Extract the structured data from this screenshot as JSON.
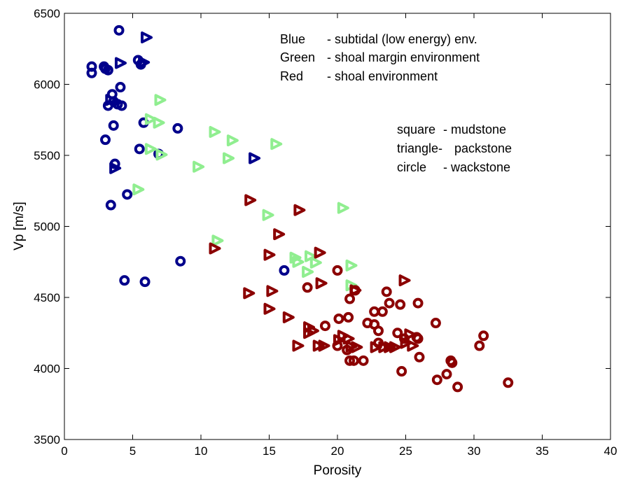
{
  "chart_data": {
    "type": "scatter",
    "title": "",
    "xlabel": "Porosity",
    "ylabel": "Vp [m/s]",
    "xlim": [
      0,
      40
    ],
    "ylim": [
      3500,
      6500
    ],
    "xticks": [
      "0",
      "5",
      "10",
      "15",
      "20",
      "25",
      "30",
      "35",
      "40"
    ],
    "yticks": [
      "3500",
      "4000",
      "4500",
      "5000",
      "5500",
      "6000",
      "6500"
    ],
    "grid": false,
    "annotations": {
      "environment": [
        {
          "key": "Blue",
          "text": "- subtidal (low energy) env."
        },
        {
          "key": "Green",
          "text": "- shoal margin environment"
        },
        {
          "key": "Red",
          "text": "- shoal environment"
        }
      ],
      "lithology": [
        {
          "key": "square",
          "text": "- mudstone"
        },
        {
          "key": "triangle-",
          "text": "packstone"
        },
        {
          "key": "circle",
          "text": "- wackstone"
        }
      ]
    },
    "colors": {
      "blue": "#00008b",
      "green": "#90ee90",
      "red": "#8b0000"
    },
    "series": [
      {
        "group": "blue-circle",
        "color": "#00008b",
        "marker": "circle",
        "points": [
          [
            4.0,
            6380
          ],
          [
            2.0,
            6125
          ],
          [
            2.0,
            6080
          ],
          [
            2.9,
            6125
          ],
          [
            3.0,
            6110
          ],
          [
            3.2,
            6100
          ],
          [
            5.4,
            6170
          ],
          [
            5.6,
            6140
          ],
          [
            3.2,
            5850
          ],
          [
            3.5,
            5930
          ],
          [
            3.6,
            5880
          ],
          [
            4.1,
            5980
          ],
          [
            3.9,
            5860
          ],
          [
            4.2,
            5850
          ],
          [
            5.8,
            5730
          ],
          [
            3.6,
            5710
          ],
          [
            8.3,
            5690
          ],
          [
            3.0,
            5610
          ],
          [
            5.5,
            5545
          ],
          [
            6.9,
            5510
          ],
          [
            3.7,
            5440
          ],
          [
            4.6,
            5225
          ],
          [
            3.4,
            5150
          ],
          [
            8.5,
            4755
          ],
          [
            4.4,
            4620
          ],
          [
            5.9,
            4610
          ],
          [
            16.1,
            4690
          ]
        ]
      },
      {
        "group": "blue-triangle",
        "color": "#00008b",
        "marker": "triangle",
        "points": [
          [
            6.0,
            6330
          ],
          [
            4.1,
            6150
          ],
          [
            5.8,
            6155
          ],
          [
            3.4,
            5890
          ],
          [
            3.7,
            5410
          ],
          [
            13.9,
            5480
          ]
        ]
      },
      {
        "group": "green-triangle",
        "color": "#90ee90",
        "marker": "triangle",
        "points": [
          [
            7.0,
            5890
          ],
          [
            6.3,
            5755
          ],
          [
            6.9,
            5730
          ],
          [
            6.3,
            5545
          ],
          [
            7.1,
            5505
          ],
          [
            11.0,
            5665
          ],
          [
            12.3,
            5605
          ],
          [
            12.0,
            5480
          ],
          [
            9.8,
            5420
          ],
          [
            15.5,
            5580
          ],
          [
            5.4,
            5260
          ],
          [
            14.9,
            5080
          ],
          [
            20.4,
            5130
          ],
          [
            11.2,
            4900
          ],
          [
            16.9,
            4780
          ],
          [
            17.1,
            4750
          ],
          [
            18.0,
            4790
          ],
          [
            18.4,
            4745
          ],
          [
            21.0,
            4725
          ],
          [
            17.8,
            4680
          ],
          [
            21.0,
            4585
          ]
        ]
      },
      {
        "group": "red-triangle",
        "color": "#8b0000",
        "marker": "triangle",
        "points": [
          [
            13.6,
            5185
          ],
          [
            17.2,
            5115
          ],
          [
            15.7,
            4945
          ],
          [
            11.0,
            4845
          ],
          [
            15.0,
            4800
          ],
          [
            18.7,
            4815
          ],
          [
            18.8,
            4600
          ],
          [
            15.2,
            4545
          ],
          [
            13.5,
            4530
          ],
          [
            24.9,
            4620
          ],
          [
            15.0,
            4420
          ],
          [
            16.4,
            4360
          ],
          [
            21.3,
            4550
          ],
          [
            17.9,
            4290
          ],
          [
            17.9,
            4250
          ],
          [
            18.2,
            4265
          ],
          [
            17.1,
            4160
          ],
          [
            18.6,
            4160
          ],
          [
            19.0,
            4160
          ],
          [
            20.1,
            4200
          ],
          [
            20.4,
            4230
          ],
          [
            20.8,
            4210
          ],
          [
            21.0,
            4155
          ],
          [
            21.4,
            4150
          ],
          [
            22.8,
            4150
          ],
          [
            23.4,
            4150
          ],
          [
            23.8,
            4150
          ],
          [
            24.2,
            4150
          ],
          [
            25.3,
            4240
          ],
          [
            25.5,
            4160
          ],
          [
            25.0,
            4180
          ]
        ]
      },
      {
        "group": "red-circle",
        "color": "#8b0000",
        "marker": "circle",
        "points": [
          [
            20.0,
            4690
          ],
          [
            17.8,
            4570
          ],
          [
            20.9,
            4490
          ],
          [
            21.3,
            4550
          ],
          [
            23.6,
            4540
          ],
          [
            22.7,
            4400
          ],
          [
            23.3,
            4400
          ],
          [
            23.8,
            4460
          ],
          [
            24.6,
            4450
          ],
          [
            25.9,
            4460
          ],
          [
            20.1,
            4350
          ],
          [
            20.8,
            4360
          ],
          [
            22.2,
            4320
          ],
          [
            22.7,
            4310
          ],
          [
            23.0,
            4265
          ],
          [
            24.4,
            4250
          ],
          [
            24.9,
            4210
          ],
          [
            25.8,
            4220
          ],
          [
            25.9,
            4210
          ],
          [
            27.2,
            4320
          ],
          [
            19.1,
            4300
          ],
          [
            20.0,
            4160
          ],
          [
            20.7,
            4130
          ],
          [
            20.9,
            4055
          ],
          [
            21.2,
            4055
          ],
          [
            21.9,
            4055
          ],
          [
            23.0,
            4180
          ],
          [
            24.7,
            3980
          ],
          [
            26.0,
            4080
          ],
          [
            27.3,
            3920
          ],
          [
            28.0,
            3960
          ],
          [
            28.3,
            4055
          ],
          [
            28.4,
            4040
          ],
          [
            28.8,
            3870
          ],
          [
            30.4,
            4160
          ],
          [
            30.7,
            4230
          ],
          [
            32.5,
            3900
          ]
        ]
      }
    ]
  }
}
